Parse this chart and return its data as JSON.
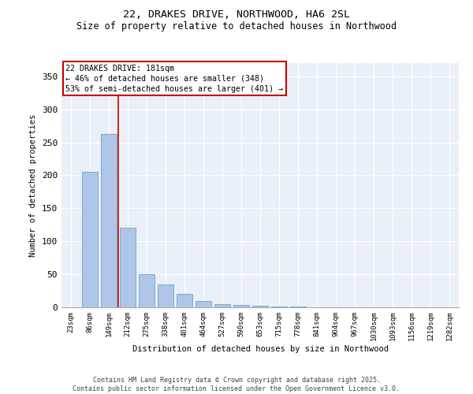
{
  "title1": "22, DRAKES DRIVE, NORTHWOOD, HA6 2SL",
  "title2": "Size of property relative to detached houses in Northwood",
  "xlabel": "Distribution of detached houses by size in Northwood",
  "ylabel": "Number of detached properties",
  "categories": [
    "23sqm",
    "86sqm",
    "149sqm",
    "212sqm",
    "275sqm",
    "338sqm",
    "401sqm",
    "464sqm",
    "527sqm",
    "590sqm",
    "653sqm",
    "715sqm",
    "778sqm",
    "841sqm",
    "904sqm",
    "967sqm",
    "1030sqm",
    "1093sqm",
    "1156sqm",
    "1219sqm",
    "1282sqm"
  ],
  "values": [
    0,
    205,
    263,
    120,
    50,
    35,
    20,
    10,
    5,
    3,
    2,
    1,
    1,
    0,
    0,
    0,
    0,
    0,
    0,
    0,
    0
  ],
  "bar_color": "#aec6e8",
  "bar_edge_color": "#7aaad0",
  "vline_x": 2.5,
  "annotation_text_line1": "22 DRAKES DRIVE: 181sqm",
  "annotation_text_line2": "← 46% of detached houses are smaller (348)",
  "annotation_text_line3": "53% of semi-detached houses are larger (401) →",
  "vline_color": "#cc0000",
  "ylim": [
    0,
    370
  ],
  "yticks": [
    0,
    50,
    100,
    150,
    200,
    250,
    300,
    350
  ],
  "bg_color": "#eaf0f8",
  "footer1": "Contains HM Land Registry data © Crown copyright and database right 2025.",
  "footer2": "Contains public sector information licensed under the Open Government Licence v3.0."
}
